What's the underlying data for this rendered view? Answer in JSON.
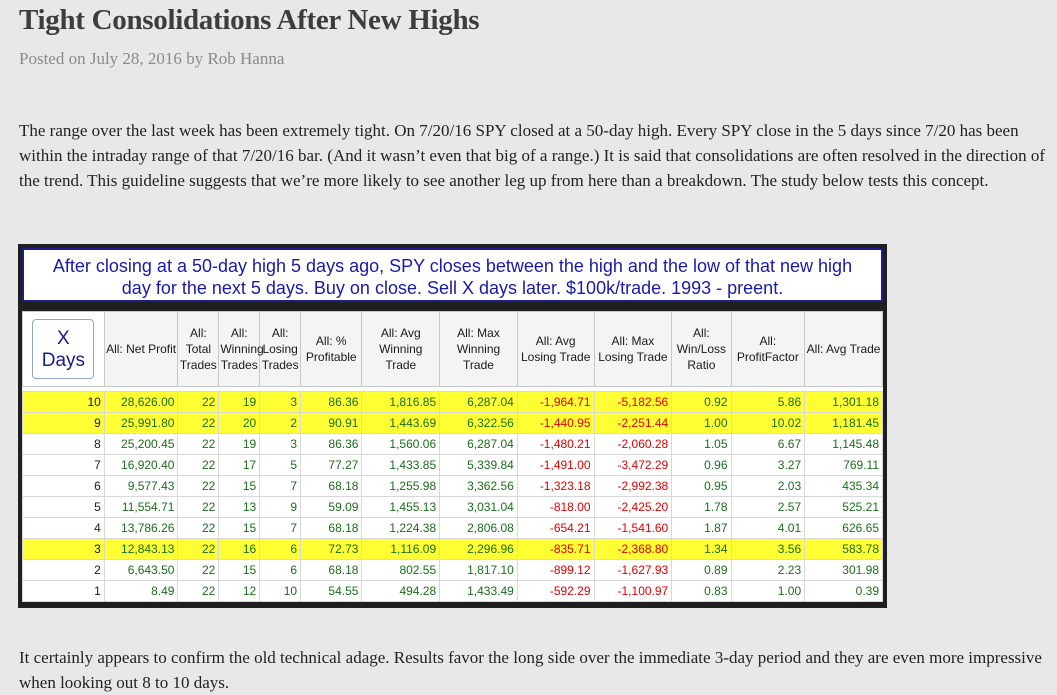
{
  "post": {
    "title": "Tight Consolidations After New Highs",
    "posted_prefix": "Posted on",
    "date": "July 28, 2016",
    "by": "by",
    "author": "Rob Hanna",
    "intro": "The range over the last week has been extremely tight. On 7/20/16 SPY closed at a 50-day high. Every SPY close in the 5 days since 7/20 has been within the intraday range of that 7/20/16 bar. (And it wasn’t even that big of a range.) It is said that consolidations are often resolved in the direction of the trend. This guideline suggests that we’re more likely to see another leg up from here than a breakdown. The study below tests this concept.",
    "conclusion": "It certainly appears to confirm the old technical adage. Results favor the long side over the immediate 3-day period and they are even more impressive when looking out 8 to 10 days."
  },
  "study": {
    "title_line1": "After closing at a 50-day high 5 days ago, SPY closes between the high and the low of that new high",
    "title_line2": "day for the next 5 days. Buy on close. Sell X days later. $100k/trade. 1993 - preent.",
    "x_label_top": "X",
    "x_label_bottom": "Days",
    "columns": [
      {
        "key": "net_profit",
        "label": "All: Net Profit"
      },
      {
        "key": "total_trades",
        "label": "All: Total Trades"
      },
      {
        "key": "winning_trades",
        "label": "All: Winning Trades"
      },
      {
        "key": "losing_trades",
        "label": "All: Losing Trades"
      },
      {
        "key": "pct_profitable",
        "label": "All: % Profitable"
      },
      {
        "key": "avg_winning",
        "label": "All: Avg Winning Trade"
      },
      {
        "key": "max_winning",
        "label": "All: Max Winning Trade"
      },
      {
        "key": "avg_losing",
        "label": "All: Avg Losing Trade"
      },
      {
        "key": "max_losing",
        "label": "All: Max Losing Trade"
      },
      {
        "key": "win_loss_ratio",
        "label": "All: Win/Loss Ratio"
      },
      {
        "key": "profit_factor",
        "label": "All: ProfitFactor"
      },
      {
        "key": "avg_trade",
        "label": "All: Avg Trade"
      }
    ],
    "rows": [
      {
        "days": "10",
        "highlight": true,
        "cells": [
          "28,626.00",
          "22",
          "19",
          "3",
          "86.36",
          "1,816.85",
          "6,287.04",
          "-1,964.71",
          "-5,182.56",
          "0.92",
          "5.86",
          "1,301.18"
        ]
      },
      {
        "days": "9",
        "highlight": true,
        "cells": [
          "25,991.80",
          "22",
          "20",
          "2",
          "90.91",
          "1,443.69",
          "6,322.56",
          "-1,440.95",
          "-2,251.44",
          "1.00",
          "10.02",
          "1,181.45"
        ]
      },
      {
        "days": "8",
        "highlight": false,
        "cells": [
          "25,200.45",
          "22",
          "19",
          "3",
          "86.36",
          "1,560.06",
          "6,287.04",
          "-1,480.21",
          "-2,060.28",
          "1.05",
          "6.67",
          "1,145.48"
        ]
      },
      {
        "days": "7",
        "highlight": false,
        "cells": [
          "16,920.40",
          "22",
          "17",
          "5",
          "77.27",
          "1,433.85",
          "5,339.84",
          "-1,491.00",
          "-3,472.29",
          "0.96",
          "3.27",
          "769.11"
        ]
      },
      {
        "days": "6",
        "highlight": false,
        "cells": [
          "9,577.43",
          "22",
          "15",
          "7",
          "68.18",
          "1,255.98",
          "3,362.56",
          "-1,323.18",
          "-2,992.38",
          "0.95",
          "2.03",
          "435.34"
        ]
      },
      {
        "days": "5",
        "highlight": false,
        "cells": [
          "11,554.71",
          "22",
          "13",
          "9",
          "59.09",
          "1,455.13",
          "3,031.04",
          "-818.00",
          "-2,425.20",
          "1.78",
          "2.57",
          "525.21"
        ]
      },
      {
        "days": "4",
        "highlight": false,
        "cells": [
          "13,786.26",
          "22",
          "15",
          "7",
          "68.18",
          "1,224.38",
          "2,806.08",
          "-654.21",
          "-1,541.60",
          "1.87",
          "4.01",
          "626.65"
        ]
      },
      {
        "days": "3",
        "highlight": true,
        "cells": [
          "12,843.13",
          "22",
          "16",
          "6",
          "72.73",
          "1,116.09",
          "2,296.96",
          "-835.71",
          "-2,368.80",
          "1.34",
          "3.56",
          "583.78"
        ]
      },
      {
        "days": "2",
        "highlight": false,
        "cells": [
          "6,643.50",
          "22",
          "15",
          "6",
          "68.18",
          "802.55",
          "1,817.10",
          "-899.12",
          "-1,627.93",
          "0.89",
          "2.23",
          "301.98"
        ]
      },
      {
        "days": "1",
        "highlight": false,
        "cells": [
          "8.49",
          "22",
          "12",
          "10",
          "54.55",
          "494.28",
          "1,433.49",
          "-592.29",
          "-1,100.97",
          "0.83",
          "1.00",
          "0.39"
        ]
      }
    ],
    "colors": {
      "positive": "#1a6e1a",
      "negative": "#e00000",
      "highlight": "#ffff33",
      "title_text": "#1a1aa8"
    }
  }
}
